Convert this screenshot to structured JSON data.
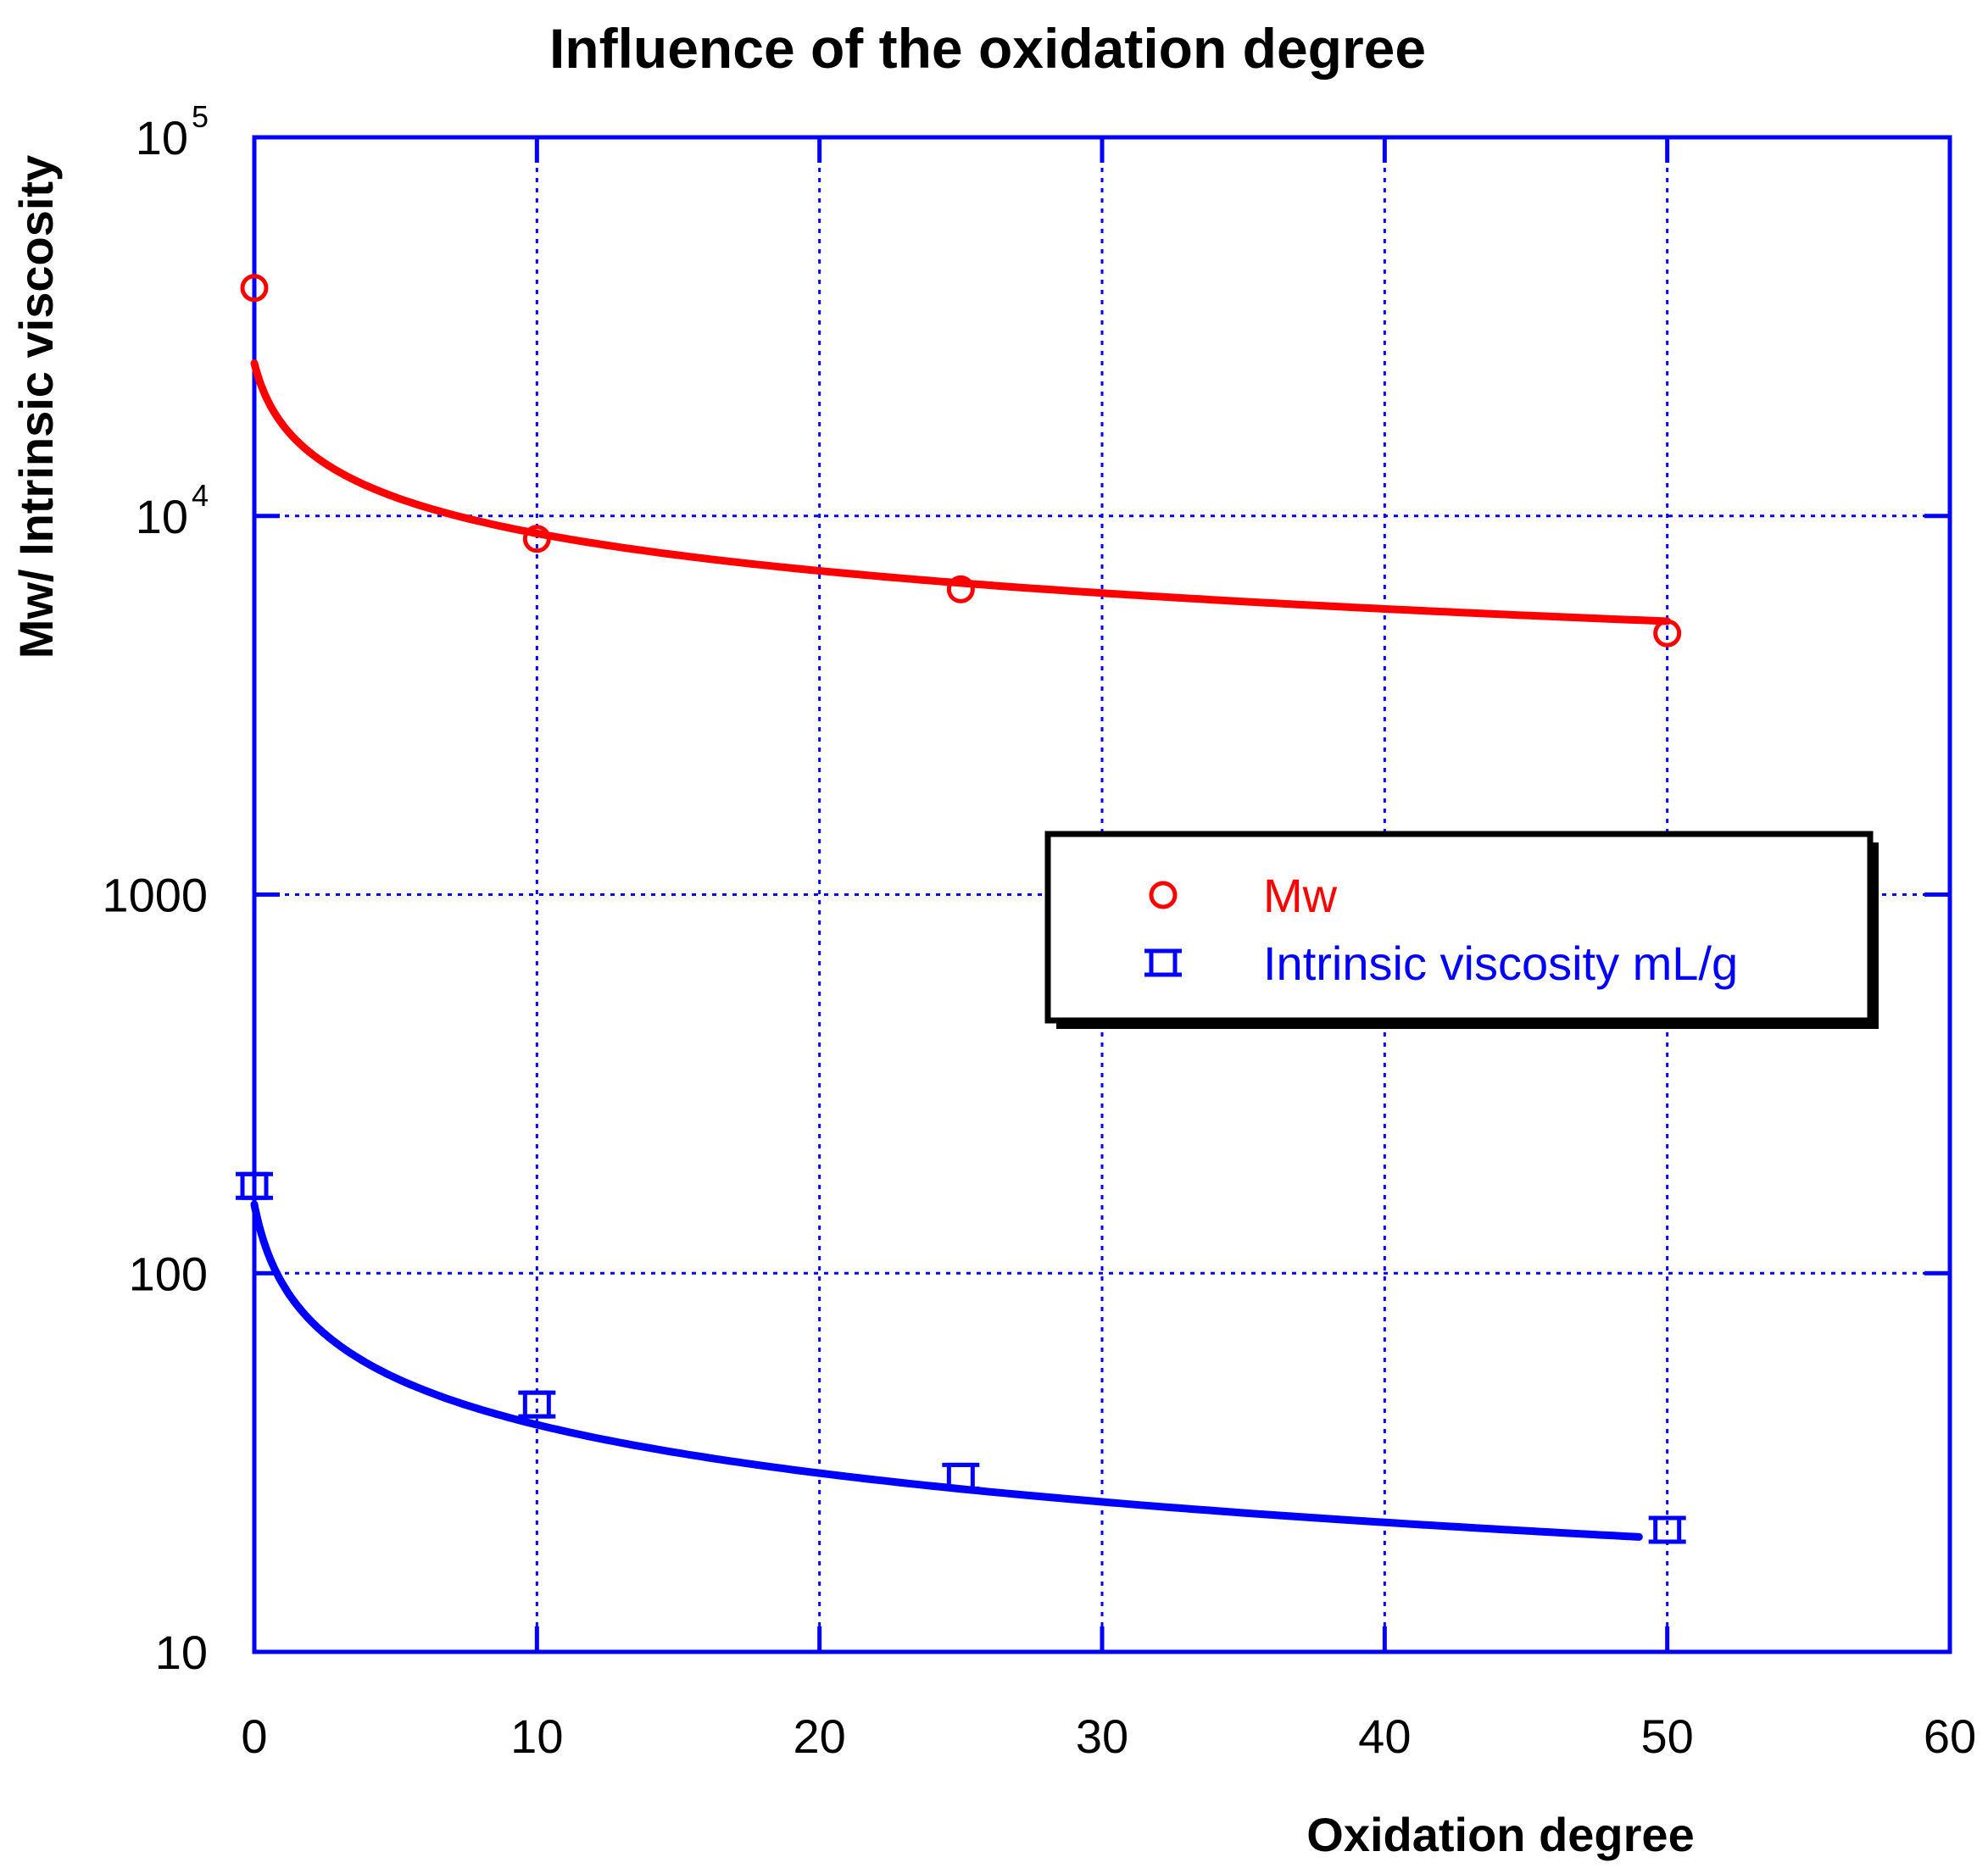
{
  "chart_data": {
    "type": "scatter",
    "title": "Influence of the oxidation degree",
    "xlabel": "Oxidation degree",
    "ylabel": "Mw/ Intrinsic viscosity",
    "xlim": [
      0,
      60
    ],
    "ylim": [
      10,
      100000
    ],
    "yscale": "log",
    "grid": true,
    "x_ticks": [
      "0",
      "10",
      "20",
      "30",
      "40",
      "50",
      "60"
    ],
    "y_ticks": [
      {
        "base": "10",
        "sup": "5"
      },
      {
        "base": "10",
        "sup": "4"
      },
      {
        "base": "1000",
        "sup": ""
      },
      {
        "base": "100",
        "sup": ""
      },
      {
        "base": "10",
        "sup": ""
      }
    ],
    "legend_position": "center-right",
    "series": [
      {
        "name": "Mw",
        "color": "#ff0000",
        "marker": "circle",
        "x": [
          0,
          10,
          25,
          50
        ],
        "y": [
          40000,
          8700,
          6400,
          4900
        ],
        "fit": {
          "model": "a*(x+b)^c",
          "a": 20000,
          "b": 0.5,
          "c": -0.34,
          "x_range": [
            0,
            50
          ]
        }
      },
      {
        "name": "Intrinsic viscosity mL/g",
        "color": "#0000ff",
        "marker": "square",
        "x": [
          0,
          10,
          25,
          50
        ],
        "y": [
          170,
          45,
          29,
          21
        ],
        "fit": {
          "model": "a*(x+b)^c",
          "a": 112,
          "b": 0.5,
          "c": -0.44,
          "x_range": [
            0,
            49
          ]
        }
      }
    ]
  }
}
